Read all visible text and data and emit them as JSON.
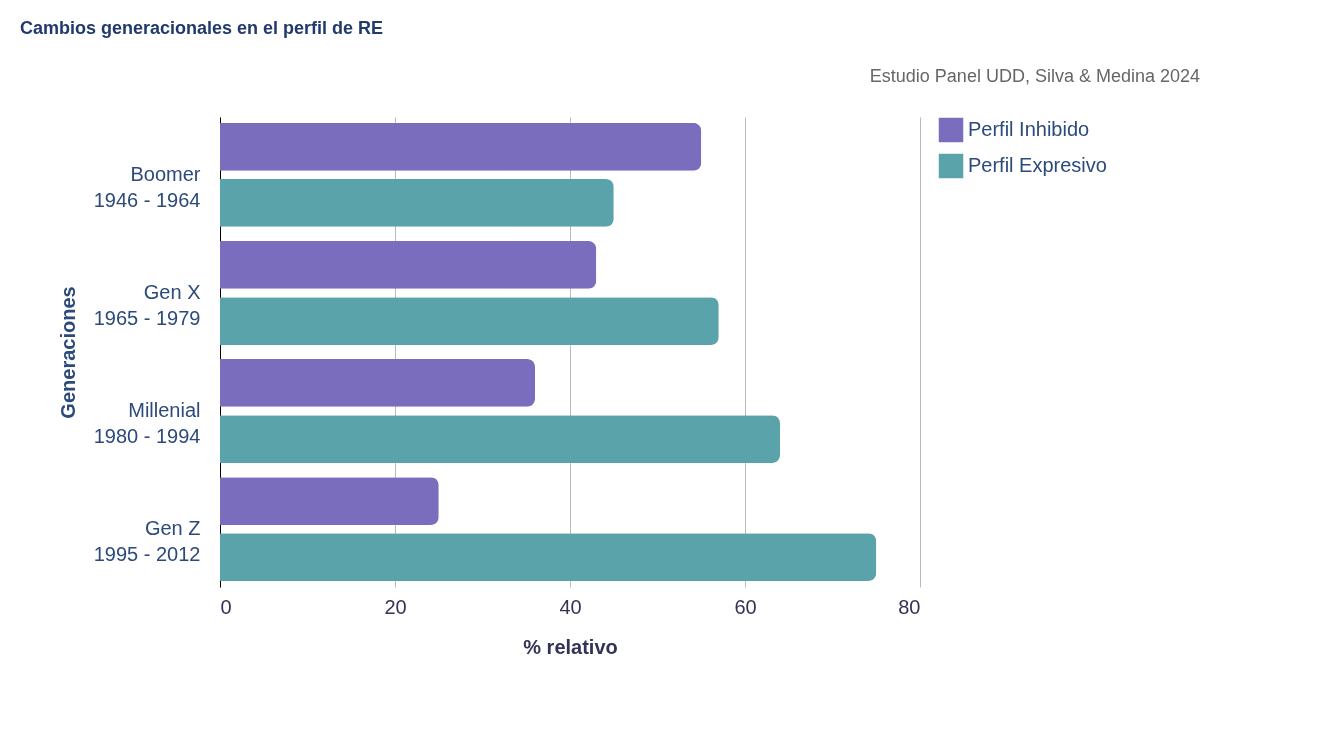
{
  "chart_data": {
    "type": "bar",
    "orientation": "horizontal",
    "title": "Cambios generacionales en el perfil de RE",
    "annotations": [
      "Estudio Panel UDD, Silva & Medina 2024"
    ],
    "categories": [
      "Boomer\n1946 - 1964",
      "Gen X\n1965 - 1979",
      "Millenial\n1980 - 1994",
      "Gen Z\n1995 - 2012"
    ],
    "series": [
      {
        "name": "Perfil Inhibido",
        "color": "#7b6dbd",
        "values": [
          55,
          43,
          36,
          25
        ]
      },
      {
        "name": "Perfil Expresivo",
        "color": "#5ba3ab",
        "values": [
          45,
          57,
          64,
          75
        ]
      }
    ],
    "xlabel": "% relativo",
    "ylabel": "Generaciones",
    "xlim": [
      0,
      80
    ],
    "xticks": [
      0,
      20,
      40,
      60,
      80
    ],
    "grid": "x",
    "legend": "top right"
  }
}
